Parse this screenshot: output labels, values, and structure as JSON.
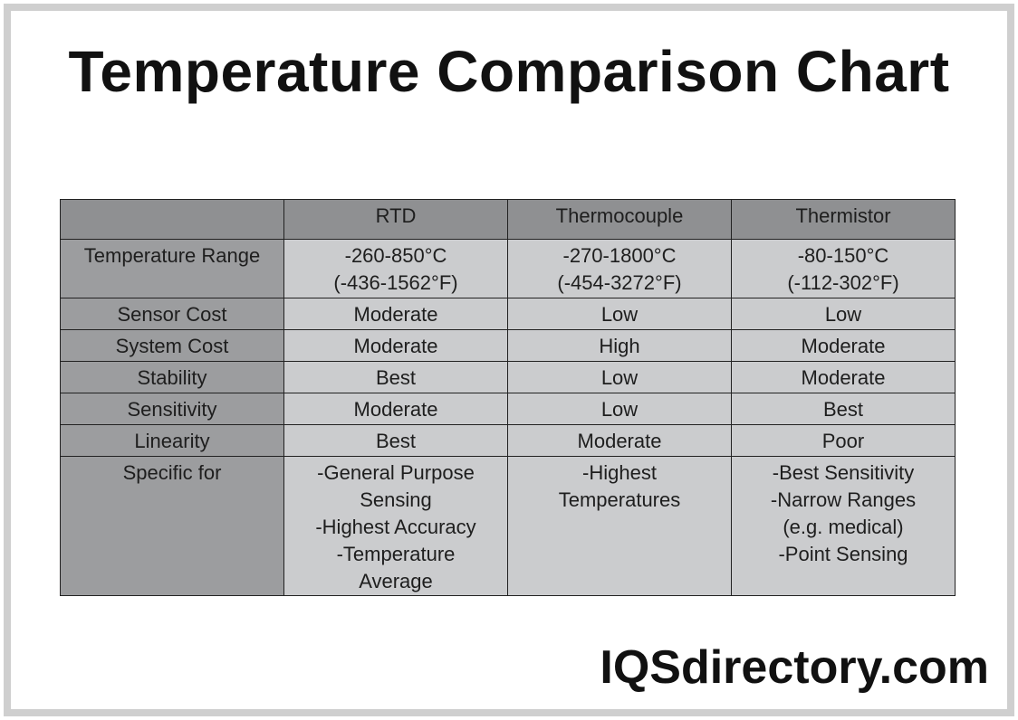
{
  "header": {
    "title": "Temperature Comparison Chart"
  },
  "table": {
    "columns": [
      "",
      "RTD",
      "Thermocouple",
      "Thermistor"
    ],
    "rows": [
      [
        [
          "Temperature Range"
        ],
        [
          "-260-850°C",
          "(-436-1562°F)"
        ],
        [
          "-270-1800°C",
          "(-454-3272°F)"
        ],
        [
          "-80-150°C",
          "(-112-302°F)"
        ]
      ],
      [
        [
          "Sensor Cost"
        ],
        [
          "Moderate"
        ],
        [
          "Low"
        ],
        [
          "Low"
        ]
      ],
      [
        [
          "System Cost"
        ],
        [
          "Moderate"
        ],
        [
          "High"
        ],
        [
          "Moderate"
        ]
      ],
      [
        [
          "Stability"
        ],
        [
          "Best"
        ],
        [
          "Low"
        ],
        [
          "Moderate"
        ]
      ],
      [
        [
          "Sensitivity"
        ],
        [
          "Moderate"
        ],
        [
          "Low"
        ],
        [
          "Best"
        ]
      ],
      [
        [
          "Linearity"
        ],
        [
          "Best"
        ],
        [
          "Moderate"
        ],
        [
          "Poor"
        ]
      ],
      [
        [
          "Specific for"
        ],
        [
          "-General Purpose",
          "Sensing",
          "-Highest Accuracy",
          "-Temperature",
          "Average"
        ],
        [
          "-Highest",
          "Temperatures"
        ],
        [
          "-Best Sensitivity",
          "-Narrow Ranges",
          "(e.g. medical)",
          "-Point Sensing"
        ]
      ]
    ]
  },
  "footer": {
    "brand": "IQSdirectory.com"
  }
}
